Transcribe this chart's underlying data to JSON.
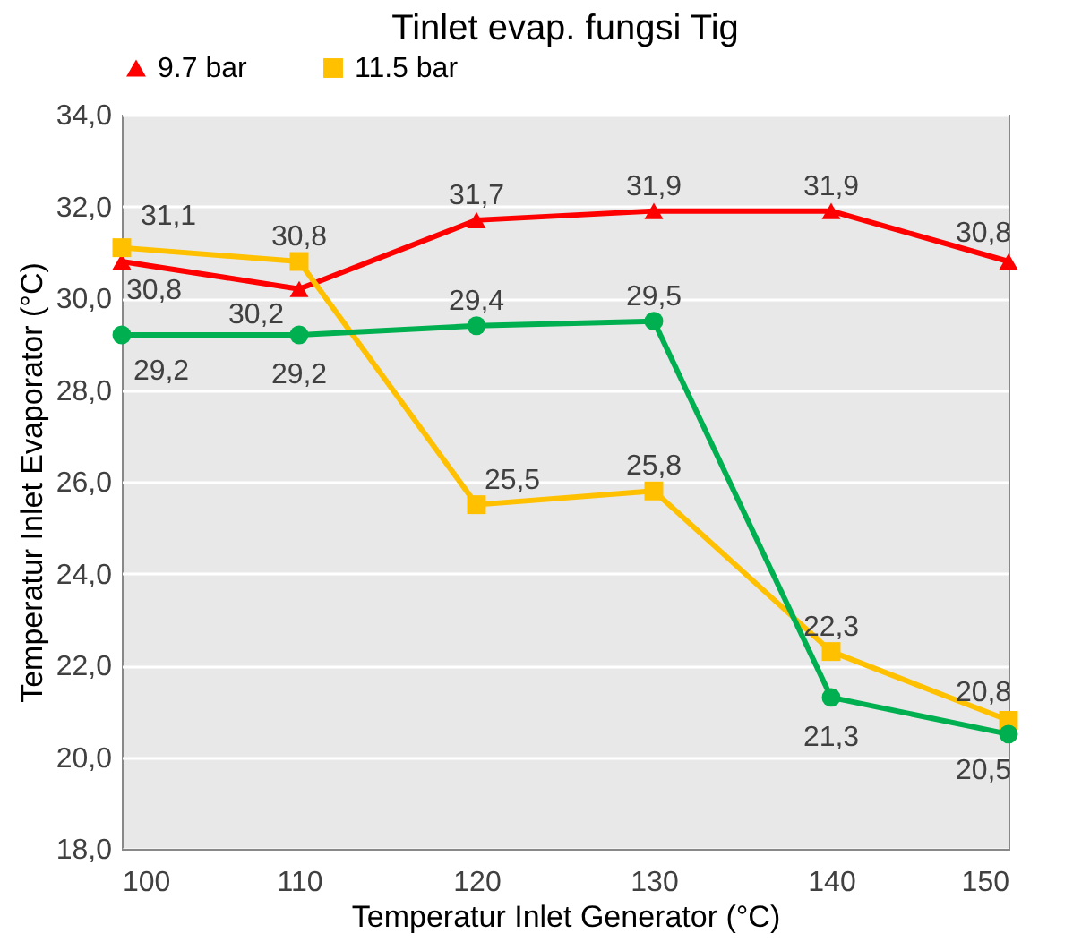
{
  "chart_data": {
    "type": "line",
    "title": "Tinlet evap. fungsi Tig",
    "xlabel": "Temperatur Inlet Generator (°C)",
    "ylabel": "Temperatur Inlet Evaporator (°C)",
    "x": [
      100,
      110,
      120,
      130,
      140,
      150
    ],
    "series": [
      {
        "name": "9.7 bar",
        "color": "#ff0000",
        "marker": "triangle",
        "values": [
          30.8,
          30.2,
          31.7,
          31.9,
          31.9,
          30.8
        ],
        "value_labels": [
          "30,8",
          "30,2",
          "31,7",
          "31,9",
          "31,9",
          "30,8"
        ]
      },
      {
        "name": "11.5 bar",
        "color": "#ffc000",
        "marker": "square",
        "values": [
          31.1,
          30.8,
          25.5,
          25.8,
          22.3,
          20.8
        ],
        "value_labels": [
          "31,1",
          "30,8",
          "25,5",
          "25,8",
          "22,3",
          "20,8"
        ]
      },
      {
        "color": "#00b050",
        "marker": "circle",
        "values": [
          29.2,
          29.2,
          29.4,
          29.5,
          21.3,
          20.5
        ],
        "value_labels": [
          "29,2",
          "29,2",
          "29,4",
          "29,5",
          "21,3",
          "20,5"
        ]
      }
    ],
    "xlim": [
      100,
      150
    ],
    "xticks": [
      100,
      110,
      120,
      130,
      140,
      150
    ],
    "ylim": [
      18,
      34
    ],
    "yticks": [
      {
        "value": 18,
        "label": "18,0"
      },
      {
        "value": 20,
        "label": "20,0"
      },
      {
        "value": 22,
        "label": "22,0"
      },
      {
        "value": 24,
        "label": "24,0"
      },
      {
        "value": 26,
        "label": "26,0"
      },
      {
        "value": 28,
        "label": "28,0"
      },
      {
        "value": 30,
        "label": "30,0"
      },
      {
        "value": 32,
        "label": "32,0"
      },
      {
        "value": 34,
        "label": "34,0"
      }
    ],
    "grid": "y",
    "legend": "top",
    "line_style": "solid"
  }
}
